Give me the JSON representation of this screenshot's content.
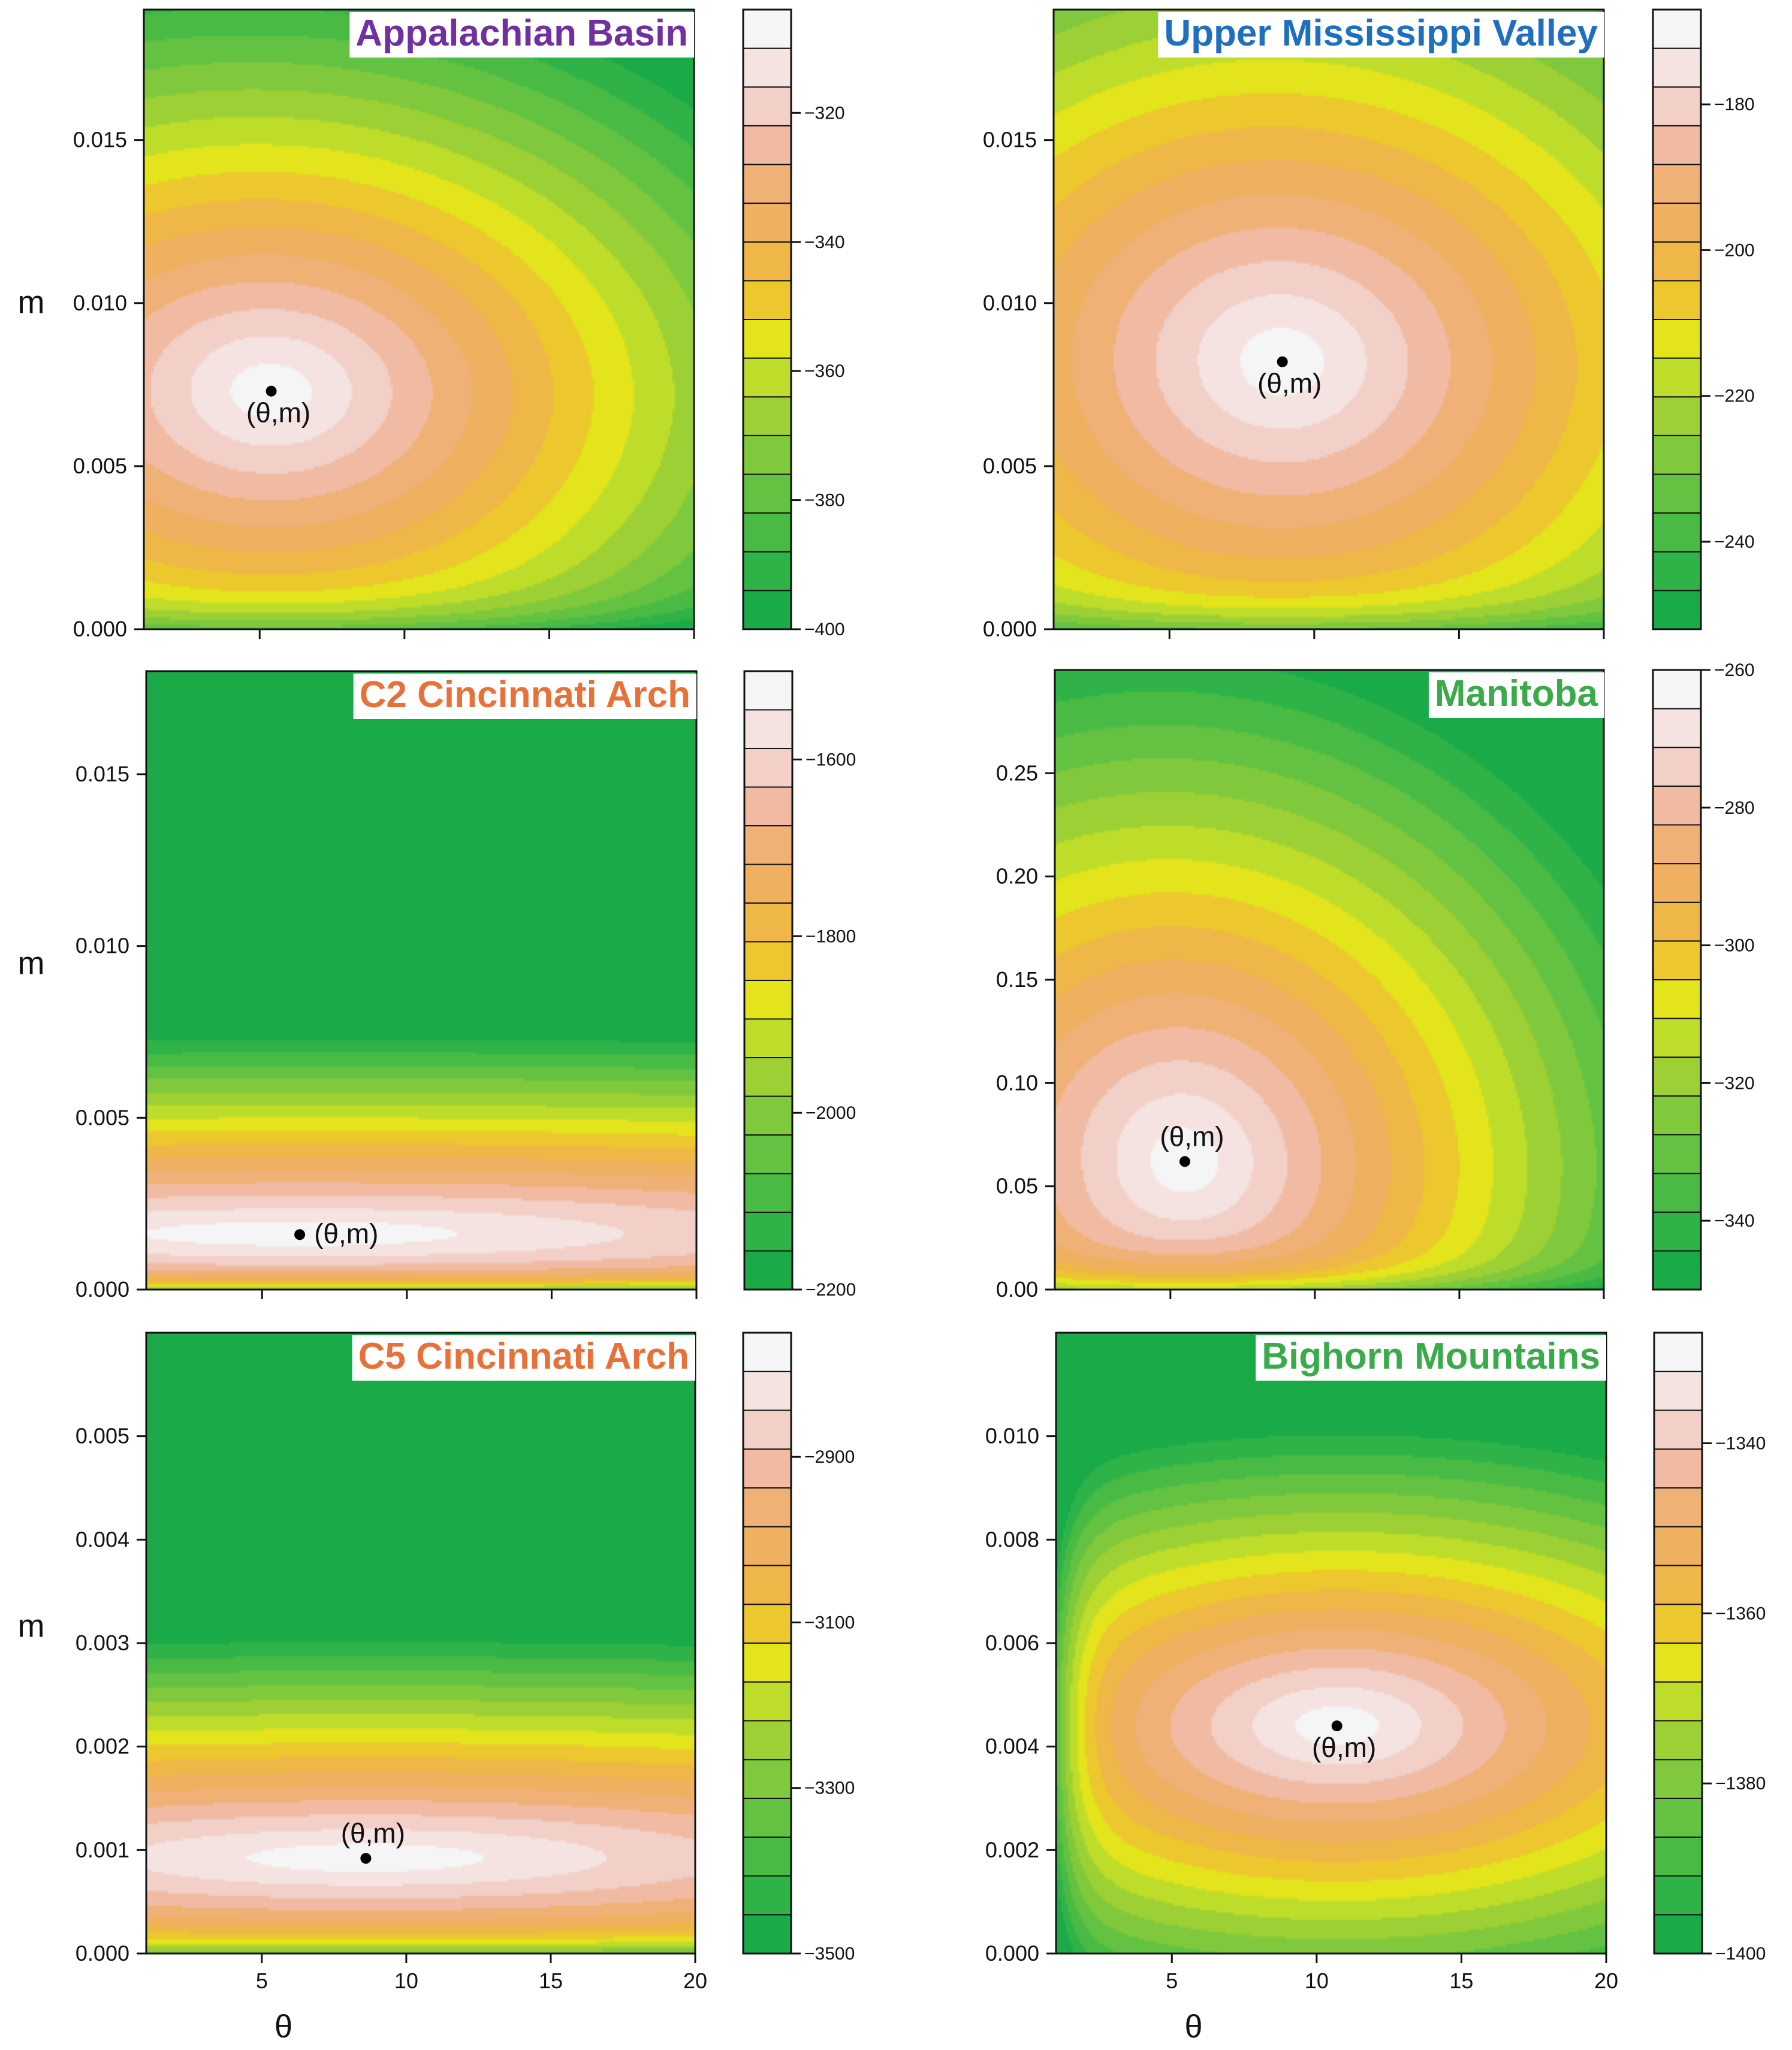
{
  "colors": {
    "levels": [
      "#1aaa48",
      "#2fb348",
      "#49bb45",
      "#63c242",
      "#80c93c",
      "#9dd034",
      "#bedd2a",
      "#e3e41c",
      "#ecc72e",
      "#eeb748",
      "#efb05f",
      "#f0b176",
      "#f0bba2",
      "#f2d0c8",
      "#f5e3e1",
      "#f5f5f5"
    ],
    "optimum": "#000000"
  },
  "chart_data": [
    {
      "type": "contour",
      "title": "Appalachian Basin",
      "title_color": "#7030a0",
      "xlabel": "",
      "ylabel": "m",
      "xlim": [
        1,
        20
      ],
      "ylim": [
        0,
        0.019
      ],
      "xticks": [
        "5",
        "10",
        "15",
        "20"
      ],
      "yticks": [
        {
          "v": 0,
          "t": "0.000"
        },
        {
          "v": 0.005,
          "t": "0.005"
        },
        {
          "v": 0.01,
          "t": "0.010"
        },
        {
          "v": 0.015,
          "t": "0.015"
        }
      ],
      "optimum": {
        "theta": 5.4,
        "m": 0.0073,
        "label": "(θ,m)"
      },
      "colorbar": {
        "min": -400,
        "max": -304,
        "ticks": [
          -320,
          -340,
          -360,
          -380,
          -400
        ],
        "tick_labels": [
          "-320",
          "-340",
          "-360",
          "-380",
          "-400"
        ]
      }
    },
    {
      "type": "contour",
      "title": "Upper Mississippi Valley",
      "title_color": "#1f6fbf",
      "xlabel": "",
      "ylabel": "",
      "xlim": [
        1,
        20
      ],
      "ylim": [
        0,
        0.019
      ],
      "xticks": [
        "5",
        "10",
        "15",
        "20"
      ],
      "yticks": [
        {
          "v": 0,
          "t": "0.000"
        },
        {
          "v": 0.005,
          "t": "0.005"
        },
        {
          "v": 0.01,
          "t": "0.010"
        },
        {
          "v": 0.015,
          "t": "0.015"
        }
      ],
      "optimum": {
        "theta": 8.9,
        "m": 0.0082,
        "label": "(θ,m)"
      },
      "colorbar": {
        "min": -252,
        "max": -167,
        "ticks": [
          -180,
          -200,
          -220,
          -240
        ],
        "tick_labels": [
          "-180",
          "-200",
          "-220",
          "-240"
        ]
      }
    },
    {
      "type": "contour",
      "title": "C2 Cincinnati Arch",
      "title_color": "#e8713a",
      "xlabel": "",
      "ylabel": "m",
      "xlim": [
        1,
        20
      ],
      "ylim": [
        0,
        0.018
      ],
      "xticks": [
        "5",
        "10",
        "15",
        "20"
      ],
      "yticks": [
        {
          "v": 0,
          "t": "0.000"
        },
        {
          "v": 0.005,
          "t": "0.005"
        },
        {
          "v": 0.01,
          "t": "0.010"
        },
        {
          "v": 0.015,
          "t": "0.015"
        }
      ],
      "optimum": {
        "theta": 6.3,
        "m": 0.0016,
        "label": "(θ,m)"
      },
      "colorbar": {
        "min": -2200,
        "max": -1500,
        "ticks": [
          -1600,
          -1800,
          -2000,
          -2200
        ],
        "tick_labels": [
          "-1600",
          "-1800",
          "-2000",
          "-2200"
        ]
      }
    },
    {
      "type": "contour",
      "title": "Manitoba",
      "title_color": "#3aaa4a",
      "xlabel": "",
      "ylabel": "",
      "xlim": [
        1,
        20
      ],
      "ylim": [
        0,
        0.3
      ],
      "xticks": [
        "5",
        "10",
        "15",
        "20"
      ],
      "yticks": [
        {
          "v": 0,
          "t": "0.00"
        },
        {
          "v": 0.05,
          "t": "0.05"
        },
        {
          "v": 0.1,
          "t": "0.10"
        },
        {
          "v": 0.15,
          "t": "0.15"
        },
        {
          "v": 0.2,
          "t": "0.20"
        },
        {
          "v": 0.25,
          "t": "0.25"
        }
      ],
      "optimum": {
        "theta": 5.5,
        "m": 0.062,
        "label": "(θ,m)"
      },
      "colorbar": {
        "min": -350,
        "max": -260,
        "ticks": [
          -260,
          -280,
          -300,
          -320,
          -340
        ],
        "tick_labels": [
          "-260",
          "-280",
          "-300",
          "-320",
          "-340"
        ]
      }
    },
    {
      "type": "contour",
      "title": "C5 Cincinnati Arch",
      "title_color": "#e8713a",
      "xlabel": "θ",
      "ylabel": "m",
      "xlim": [
        1,
        20
      ],
      "ylim": [
        0,
        0.006
      ],
      "xticks": [
        "5",
        "10",
        "15",
        "20"
      ],
      "yticks": [
        {
          "v": 0,
          "t": "0.000"
        },
        {
          "v": 0.001,
          "t": "0.001"
        },
        {
          "v": 0.002,
          "t": "0.002"
        },
        {
          "v": 0.003,
          "t": "0.003"
        },
        {
          "v": 0.004,
          "t": "0.004"
        },
        {
          "v": 0.005,
          "t": "0.005"
        }
      ],
      "optimum": {
        "theta": 8.6,
        "m": 0.00092,
        "label": "(θ,m)"
      },
      "colorbar": {
        "min": -3500,
        "max": -2750,
        "ticks": [
          -2900,
          -3100,
          -3300,
          -3500
        ],
        "tick_labels": [
          "-2900",
          "-3100",
          "-3300",
          "-3500"
        ]
      }
    },
    {
      "type": "contour",
      "title": "Bighorn Mountains",
      "title_color": "#3aaa4a",
      "xlabel": "θ",
      "ylabel": "",
      "xlim": [
        1,
        20
      ],
      "ylim": [
        0,
        0.012
      ],
      "xticks": [
        "5",
        "10",
        "15",
        "20"
      ],
      "yticks": [
        {
          "v": 0,
          "t": "0.000"
        },
        {
          "v": 0.002,
          "t": "0.002"
        },
        {
          "v": 0.004,
          "t": "0.004"
        },
        {
          "v": 0.006,
          "t": "0.006"
        },
        {
          "v": 0.008,
          "t": "0.008"
        },
        {
          "v": 0.01,
          "t": "0.010"
        }
      ],
      "optimum": {
        "theta": 10.7,
        "m": 0.0044,
        "label": "(θ,m)"
      },
      "colorbar": {
        "min": -1400,
        "max": -1327,
        "ticks": [
          -1340,
          -1360,
          -1380,
          -1400
        ],
        "tick_labels": [
          "-1340",
          "-1360",
          "-1380",
          "-1400"
        ]
      }
    }
  ]
}
